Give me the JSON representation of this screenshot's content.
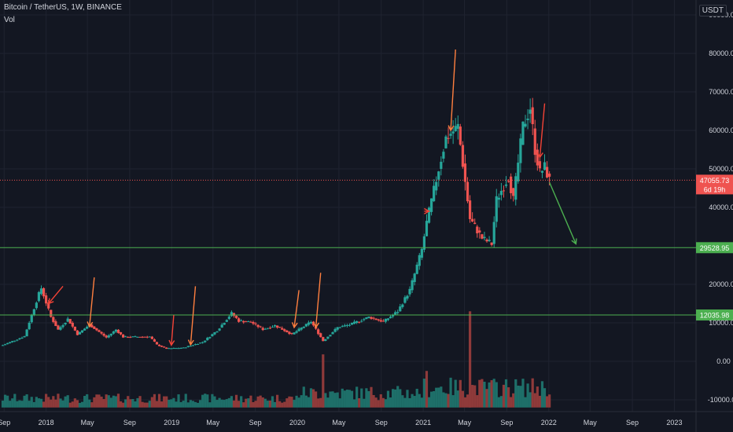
{
  "header": {
    "symbol_line": "Bitcoin / TetherUS, 1W, BINANCE",
    "indicator": "Vol"
  },
  "unit_badge": "USDT",
  "colors": {
    "background": "#131722",
    "up": "#26a69a",
    "down": "#ef5350",
    "vol_up": "#1e6f69",
    "vol_down": "#8f3a3a",
    "support": "#4caf50",
    "price_line": "#ef5350",
    "arrow_red": "#f44336",
    "arrow_orange": "#ff7f3f",
    "arrow_green": "#4caf50"
  },
  "chart_data": {
    "type": "candlestick",
    "y_axis": {
      "ticks": [
        90000,
        80000,
        70000,
        60000,
        50000,
        40000,
        20000,
        10000,
        0,
        -10000
      ],
      "tick_labels": [
        "90000.00",
        "80000.00",
        "70000.00",
        "60000.00",
        "50000.00",
        "40000.00",
        "20000.00",
        "10000.00",
        "0.00",
        "-10000.00"
      ],
      "range": [
        -12000,
        92000
      ]
    },
    "x_axis": {
      "tick_labels": [
        "Sep",
        "2018",
        "May",
        "Sep",
        "2019",
        "May",
        "Sep",
        "2020",
        "May",
        "Sep",
        "2021",
        "May",
        "Sep",
        "2022",
        "May",
        "Sep",
        "2023"
      ],
      "tick_dates": [
        "2017-09-01",
        "2018-01-01",
        "2018-05-01",
        "2018-09-01",
        "2019-01-01",
        "2019-05-01",
        "2019-09-01",
        "2020-01-01",
        "2020-05-01",
        "2020-09-01",
        "2021-01-01",
        "2021-05-01",
        "2021-09-01",
        "2022-01-01",
        "2022-05-01",
        "2022-09-01",
        "2023-01-01"
      ],
      "range": [
        "2017-08-20",
        "2023-03-05"
      ]
    },
    "price_keypoints": [
      [
        "2017-08-28",
        4200
      ],
      [
        "2017-10-30",
        6500
      ],
      [
        "2017-12-11",
        17500
      ],
      [
        "2017-12-18",
        19000
      ],
      [
        "2018-01-15",
        11500
      ],
      [
        "2018-02-05",
        8200
      ],
      [
        "2018-03-05",
        11000
      ],
      [
        "2018-04-02",
        7000
      ],
      [
        "2018-05-07",
        9500
      ],
      [
        "2018-06-25",
        6200
      ],
      [
        "2018-07-23",
        8200
      ],
      [
        "2018-08-13",
        6300
      ],
      [
        "2018-10-29",
        6400
      ],
      [
        "2018-11-19",
        4300
      ],
      [
        "2018-12-17",
        3300
      ],
      [
        "2019-02-04",
        3500
      ],
      [
        "2019-04-01",
        5000
      ],
      [
        "2019-05-13",
        8000
      ],
      [
        "2019-06-24",
        12500
      ],
      [
        "2019-07-15",
        10500
      ],
      [
        "2019-08-19",
        10200
      ],
      [
        "2019-09-23",
        8300
      ],
      [
        "2019-10-28",
        9300
      ],
      [
        "2019-12-16",
        7000
      ],
      [
        "2020-02-10",
        10300
      ],
      [
        "2020-03-16",
        5300
      ],
      [
        "2020-04-27",
        8800
      ],
      [
        "2020-06-01",
        9500
      ],
      [
        "2020-07-27",
        11500
      ],
      [
        "2020-09-07",
        10300
      ],
      [
        "2020-10-19",
        13000
      ],
      [
        "2020-11-23",
        18500
      ],
      [
        "2020-12-28",
        29000
      ],
      [
        "2021-01-11",
        36000
      ],
      [
        "2021-02-15",
        50000
      ],
      [
        "2021-03-08",
        58000
      ],
      [
        "2021-04-12",
        61000
      ],
      [
        "2021-05-17",
        37000
      ],
      [
        "2021-06-21",
        32000
      ],
      [
        "2021-07-19",
        30500
      ],
      [
        "2021-08-02",
        42000
      ],
      [
        "2021-09-06",
        48000
      ],
      [
        "2021-09-20",
        42000
      ],
      [
        "2021-10-18",
        61000
      ],
      [
        "2021-11-08",
        66000
      ],
      [
        "2021-11-22",
        55000
      ],
      [
        "2021-12-06",
        49000
      ],
      [
        "2021-12-20",
        50500
      ],
      [
        "2022-01-03",
        47055.73
      ]
    ],
    "volume_values_normalized": "derived weekly, peaks in 2021 (max ≈ 13000 units on axis)",
    "last_price": 47055.73,
    "last_price_label": "47055.73",
    "countdown_label": "6d 19h",
    "horizontal_lines": [
      {
        "price": 29528.95,
        "label": "29528.95"
      },
      {
        "price": 12035.98,
        "label": "12035.98"
      }
    ],
    "arrows": [
      {
        "color": "red",
        "from": [
          "2018-02-19",
          19500
        ],
        "to": [
          "2018-01-08",
          15000
        ]
      },
      {
        "color": "orange",
        "from": [
          "2018-05-21",
          21800
        ],
        "to": [
          "2018-05-07",
          9000
        ]
      },
      {
        "color": "red",
        "from": [
          "2019-01-07",
          12000
        ],
        "to": [
          "2018-12-31",
          4200
        ]
      },
      {
        "color": "orange",
        "from": [
          "2019-03-11",
          19500
        ],
        "to": [
          "2019-02-25",
          4300
        ]
      },
      {
        "color": "orange",
        "from": [
          "2020-01-06",
          18500
        ],
        "to": [
          "2019-12-23",
          8800
        ]
      },
      {
        "color": "orange",
        "from": [
          "2020-03-09",
          23000
        ],
        "to": [
          "2020-02-24",
          8800
        ]
      },
      {
        "color": "orange",
        "from": [
          "2021-04-05",
          81000
        ],
        "to": [
          "2021-03-22",
          60000
        ]
      },
      {
        "color": "red",
        "from": [
          "2021-01-04",
          39000
        ],
        "to": [
          "2021-01-18",
          39000
        ]
      },
      {
        "color": "red",
        "from": [
          "2021-12-20",
          67000
        ],
        "to": [
          "2021-12-06",
          53000
        ]
      },
      {
        "color": "green",
        "from": [
          "2022-01-03",
          46500
        ],
        "to": [
          "2022-03-21",
          30500
        ]
      }
    ]
  }
}
